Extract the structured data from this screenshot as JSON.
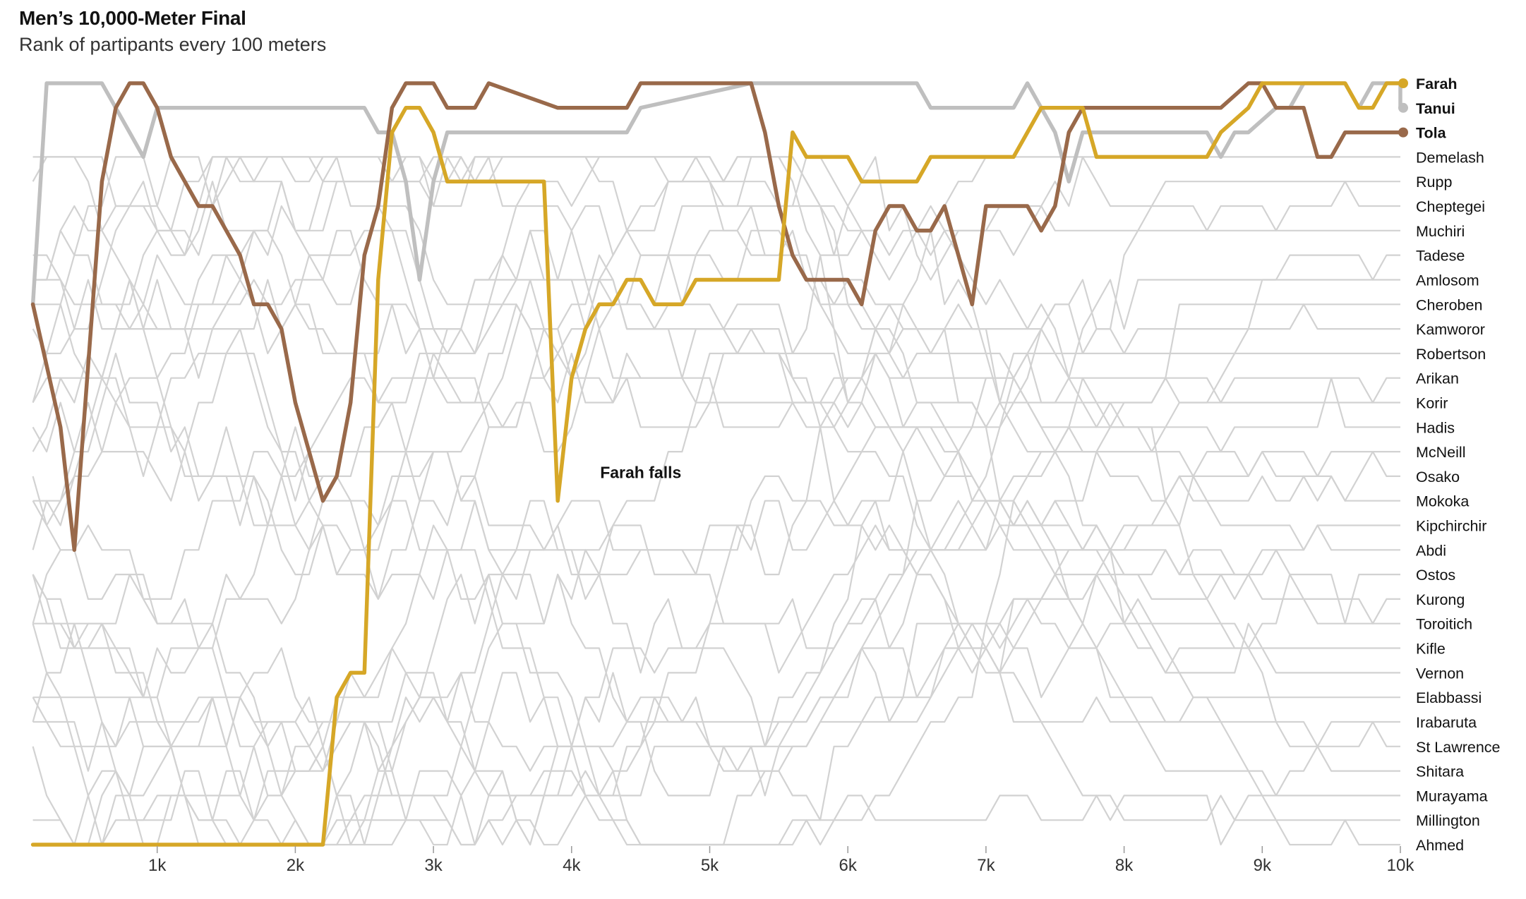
{
  "header": {
    "title": "Men’s 10,000-Meter Final",
    "subtitle": "Rank of partipants every 100 meters"
  },
  "chart_data": {
    "type": "line",
    "title": "Men’s 10,000-Meter Final",
    "subtitle": "Rank of partipants every 100 meters",
    "x_unit": "meters",
    "xlim": [
      100,
      10000
    ],
    "ylim": [
      1,
      32
    ],
    "y_reversed": true,
    "x_ticks": [
      1000,
      2000,
      3000,
      4000,
      5000,
      6000,
      7000,
      8000,
      9000,
      10000
    ],
    "x_tick_labels": [
      "1k",
      "2k",
      "3k",
      "4k",
      "5k",
      "6k",
      "7k",
      "8k",
      "9k",
      "10k"
    ],
    "final_order": [
      "Farah",
      "Tanui",
      "Tola",
      "Demelash",
      "Rupp",
      "Cheptegei",
      "Muchiri",
      "Tadese",
      "Amlosom",
      "Cheroben",
      "Kamworor",
      "Robertson",
      "Arikan",
      "Korir",
      "Hadis",
      "McNeill",
      "Osako",
      "Mokoka",
      "Kipchirchir",
      "Abdi",
      "Ostos",
      "Kurong",
      "Toroitich",
      "Kifle",
      "Vernon",
      "Elabbassi",
      "Irabaruta",
      "St Lawrence",
      "Shitara",
      "Murayama",
      "Millington",
      "Ahmed"
    ],
    "highlighted": [
      "Farah",
      "Tanui",
      "Tola"
    ],
    "colors": {
      "Farah": "#d6a727",
      "Tanui": "#bfbfbf",
      "Tola": "#99694a",
      "others": "#d2d2d2"
    },
    "series": [
      {
        "name": "Farah",
        "keypoints": [
          [
            100,
            32
          ],
          [
            2200,
            32
          ],
          [
            2300,
            26
          ],
          [
            2400,
            25
          ],
          [
            2500,
            25
          ],
          [
            2600,
            9
          ],
          [
            2700,
            3
          ],
          [
            2800,
            2
          ],
          [
            2900,
            2
          ],
          [
            3000,
            3
          ],
          [
            3100,
            5
          ],
          [
            3800,
            5
          ],
          [
            3900,
            18
          ],
          [
            4000,
            13
          ],
          [
            4100,
            11
          ],
          [
            4200,
            10
          ],
          [
            4300,
            10
          ],
          [
            4400,
            9
          ],
          [
            4500,
            9
          ],
          [
            4600,
            10
          ],
          [
            4800,
            10
          ],
          [
            4900,
            9
          ],
          [
            5500,
            9
          ],
          [
            5600,
            3
          ],
          [
            5700,
            4
          ],
          [
            6000,
            4
          ],
          [
            6100,
            5
          ],
          [
            6500,
            5
          ],
          [
            6600,
            4
          ],
          [
            7200,
            4
          ],
          [
            7300,
            3
          ],
          [
            7400,
            2
          ],
          [
            7700,
            2
          ],
          [
            7800,
            4
          ],
          [
            8600,
            4
          ],
          [
            8700,
            3
          ],
          [
            8900,
            2
          ],
          [
            9000,
            1
          ],
          [
            9600,
            1
          ],
          [
            9700,
            2
          ],
          [
            9800,
            2
          ],
          [
            9900,
            1
          ],
          [
            10000,
            1
          ]
        ]
      },
      {
        "name": "Tanui",
        "keypoints": [
          [
            100,
            10
          ],
          [
            200,
            1
          ],
          [
            600,
            1
          ],
          [
            700,
            2
          ],
          [
            800,
            3
          ],
          [
            900,
            4
          ],
          [
            1000,
            2
          ],
          [
            1100,
            2
          ],
          [
            2500,
            2
          ],
          [
            2600,
            3
          ],
          [
            2700,
            3
          ],
          [
            2800,
            5
          ],
          [
            2900,
            9
          ],
          [
            3000,
            5
          ],
          [
            3100,
            3
          ],
          [
            4400,
            3
          ],
          [
            4500,
            2
          ],
          [
            5300,
            1
          ],
          [
            6500,
            1
          ],
          [
            6600,
            2
          ],
          [
            7200,
            2
          ],
          [
            7300,
            1
          ],
          [
            7400,
            2
          ],
          [
            7500,
            3
          ],
          [
            7600,
            5
          ],
          [
            7700,
            3
          ],
          [
            7800,
            3
          ],
          [
            8600,
            3
          ],
          [
            8700,
            4
          ],
          [
            8800,
            3
          ],
          [
            8900,
            3
          ],
          [
            9100,
            2
          ],
          [
            9200,
            2
          ],
          [
            9300,
            1
          ],
          [
            9600,
            1
          ],
          [
            9700,
            2
          ],
          [
            9800,
            1
          ],
          [
            10000,
            1
          ],
          [
            10000,
            2
          ]
        ]
      },
      {
        "name": "Tola",
        "keypoints": [
          [
            100,
            10
          ],
          [
            300,
            15
          ],
          [
            400,
            20
          ],
          [
            600,
            5
          ],
          [
            700,
            2
          ],
          [
            800,
            1
          ],
          [
            900,
            1
          ],
          [
            1000,
            2
          ],
          [
            1100,
            4
          ],
          [
            1200,
            5
          ],
          [
            1300,
            6
          ],
          [
            1400,
            6
          ],
          [
            1500,
            7
          ],
          [
            1600,
            8
          ],
          [
            1700,
            10
          ],
          [
            1800,
            10
          ],
          [
            1900,
            11
          ],
          [
            2000,
            14
          ],
          [
            2100,
            16
          ],
          [
            2200,
            18
          ],
          [
            2300,
            17
          ],
          [
            2400,
            14
          ],
          [
            2500,
            8
          ],
          [
            2600,
            6
          ],
          [
            2700,
            2
          ],
          [
            2800,
            1
          ],
          [
            3000,
            1
          ],
          [
            3100,
            2
          ],
          [
            3300,
            2
          ],
          [
            3400,
            1
          ],
          [
            3900,
            2
          ],
          [
            4400,
            2
          ],
          [
            4500,
            1
          ],
          [
            5300,
            1
          ],
          [
            5400,
            3
          ],
          [
            5500,
            6
          ],
          [
            5600,
            8
          ],
          [
            5700,
            9
          ],
          [
            6000,
            9
          ],
          [
            6100,
            10
          ],
          [
            6200,
            7
          ],
          [
            6300,
            6
          ],
          [
            6400,
            6
          ],
          [
            6500,
            7
          ],
          [
            6600,
            7
          ],
          [
            6700,
            6
          ],
          [
            6800,
            8
          ],
          [
            6900,
            10
          ],
          [
            7000,
            6
          ],
          [
            7300,
            6
          ],
          [
            7400,
            7
          ],
          [
            7500,
            6
          ],
          [
            7600,
            3
          ],
          [
            7700,
            2
          ],
          [
            8000,
            2
          ],
          [
            8700,
            2
          ],
          [
            8900,
            1
          ],
          [
            9000,
            1
          ],
          [
            9100,
            2
          ],
          [
            9300,
            2
          ],
          [
            9400,
            4
          ],
          [
            9500,
            4
          ],
          [
            9600,
            3
          ],
          [
            10000,
            3
          ]
        ]
      }
    ],
    "annotations": [
      {
        "text": "Farah falls",
        "x": 3900,
        "y": 18
      }
    ]
  }
}
